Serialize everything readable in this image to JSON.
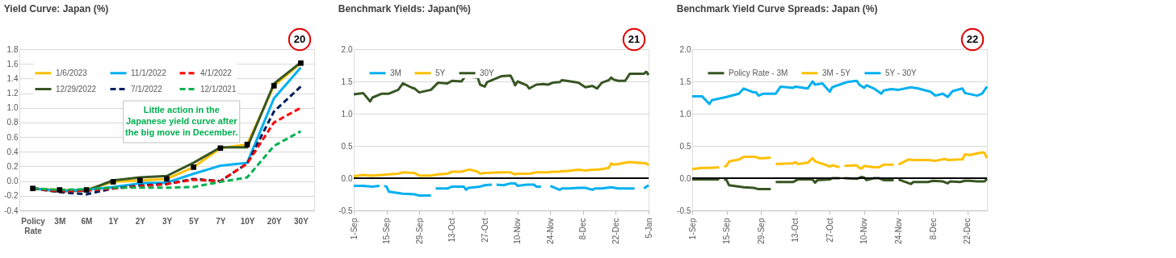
{
  "chart_data": [
    {
      "type": "line",
      "title": "Yield Curve: Japan (%)",
      "categories": [
        "Policy Rate",
        "3M",
        "6M",
        "1Y",
        "2Y",
        "3Y",
        "5Y",
        "7Y",
        "10Y",
        "20Y",
        "30Y"
      ],
      "series": [
        {
          "name": "1/6/2023",
          "color": "#ffc000",
          "marker": "square",
          "line_style": "solid",
          "values": [
            -0.1,
            -0.12,
            -0.12,
            -0.01,
            0.01,
            0.03,
            0.19,
            0.45,
            0.5,
            1.3,
            1.61
          ]
        },
        {
          "name": "12/29/2022",
          "color": "#375623",
          "line_style": "solid",
          "values": [
            -0.1,
            -0.14,
            -0.13,
            0.01,
            0.05,
            0.07,
            0.25,
            0.46,
            0.46,
            1.33,
            1.62
          ]
        },
        {
          "name": "11/1/2022",
          "color": "#00b0f0",
          "line_style": "solid",
          "values": [
            -0.1,
            -0.13,
            -0.12,
            -0.08,
            -0.03,
            -0.02,
            0.1,
            0.21,
            0.25,
            1.13,
            1.55
          ]
        },
        {
          "name": "7/1/2022",
          "color": "#002060",
          "line_style": "dashed",
          "values": [
            -0.1,
            -0.15,
            -0.18,
            -0.1,
            -0.06,
            -0.04,
            0.03,
            0.0,
            0.24,
            0.95,
            1.29
          ]
        },
        {
          "name": "4/1/2022",
          "color": "#ff0000",
          "line_style": "dashed",
          "values": [
            -0.1,
            -0.14,
            -0.13,
            -0.1,
            -0.07,
            -0.04,
            0.02,
            0.0,
            0.24,
            0.8,
            1.0
          ]
        },
        {
          "name": "12/1/2021",
          "color": "#00b050",
          "line_style": "dashed",
          "values": [
            -0.1,
            -0.12,
            -0.11,
            -0.09,
            -0.09,
            -0.09,
            -0.08,
            -0.01,
            0.05,
            0.48,
            0.68
          ]
        }
      ],
      "ylim": [
        -0.4,
        1.8
      ],
      "yticks": [
        -0.4,
        -0.2,
        {
          "value": 0,
          "label": "0.0"
        },
        0.2,
        0.4,
        0.6,
        0.8,
        {
          "value": 1,
          "label": "1.0"
        },
        1.2,
        1.4,
        1.6,
        1.8
      ],
      "grid": "y",
      "legend": "top left",
      "annotations": [
        "20",
        "Little action in the Japanese yield curve after the big move in December."
      ]
    },
    {
      "type": "line",
      "title": "Benchmark Yields: Japan(%)",
      "x": [
        "2022-09-01",
        "2022-09-05",
        "2022-09-08",
        "2022-09-09",
        "2022-09-13",
        "2022-09-16",
        "2022-09-20",
        "2022-09-22",
        "2022-09-26",
        "2022-09-27",
        "2022-09-29",
        "2022-10-04",
        "2022-10-07",
        "2022-10-11",
        "2022-10-13",
        "2022-10-17",
        "2022-10-20",
        "2022-10-21",
        "2022-10-24",
        "2022-10-25",
        "2022-10-27",
        "2022-10-28",
        "2022-11-03",
        "2022-11-07",
        "2022-11-08",
        "2022-11-09",
        "2022-11-10",
        "2022-11-14",
        "2022-11-15",
        "2022-11-18",
        "2022-11-21",
        "2022-11-23",
        "2022-11-25",
        "2022-11-28",
        "2022-11-29",
        "2022-12-01",
        "2022-12-06",
        "2022-12-09",
        "2022-12-12",
        "2022-12-14",
        "2022-12-16",
        "2022-12-19",
        "2022-12-20",
        "2022-12-21",
        "2022-12-23",
        "2022-12-26",
        "2022-12-28",
        "2023-01-03",
        "2023-01-04",
        "2023-01-05"
      ],
      "series": [
        {
          "name": "3M",
          "color": "#00b0f0",
          "x": [
            "2022-09-01",
            "2022-09-05",
            "2022-09-09",
            "2022-09-12",
            "2022-09-13",
            "2022-09-14",
            "2022-09-15",
            "2022-09-16",
            "2022-09-22",
            "2022-09-27",
            "2022-09-29",
            "2022-10-04",
            "2022-10-05",
            "2022-10-06",
            "2022-10-11",
            "2022-10-13",
            "2022-10-18",
            "2022-10-19",
            "2022-10-20",
            "2022-10-25",
            "2022-10-27",
            "2022-10-30",
            "2022-10-31",
            "2022-11-01",
            "2022-11-04",
            "2022-11-07",
            "2022-11-09",
            "2022-11-10",
            "2022-11-14",
            "2022-11-17",
            "2022-11-18",
            "2022-11-20",
            "2022-11-22",
            "2022-11-24",
            "2022-11-28",
            "2022-11-29",
            "2022-12-02",
            "2022-12-06",
            "2022-12-09",
            "2022-12-12",
            "2022-12-13",
            "2022-12-16",
            "2022-12-20",
            "2022-12-23",
            "2022-12-30",
            "2023-01-01",
            "2023-01-03",
            "2023-01-05"
          ],
          "values": [
            -0.12,
            -0.12,
            -0.13,
            -0.12,
            null,
            -0.12,
            -0.13,
            -0.21,
            -0.24,
            -0.25,
            -0.27,
            -0.27,
            null,
            -0.16,
            -0.16,
            -0.13,
            -0.13,
            -0.18,
            -0.15,
            -0.13,
            -0.11,
            -0.1,
            null,
            -0.1,
            -0.11,
            -0.08,
            -0.08,
            -0.12,
            -0.1,
            -0.1,
            -0.13,
            -0.13,
            null,
            -0.12,
            -0.18,
            -0.16,
            -0.16,
            -0.15,
            -0.15,
            -0.18,
            -0.16,
            -0.16,
            -0.14,
            -0.16,
            -0.16,
            null,
            -0.16,
            -0.11
          ]
        },
        {
          "name": "5Y",
          "color": "#ffc000",
          "values": [
            0.03,
            0.05,
            0.04,
            0.04,
            0.05,
            0.06,
            0.07,
            0.09,
            0.08,
            0.08,
            0.04,
            0.04,
            0.06,
            0.07,
            0.1,
            0.1,
            0.13,
            0.13,
            0.1,
            0.07,
            0.08,
            0.08,
            0.09,
            0.09,
            0.07,
            0.06,
            0.07,
            0.07,
            0.07,
            0.09,
            0.09,
            0.09,
            0.1,
            0.1,
            0.11,
            0.11,
            0.13,
            0.12,
            0.13,
            0.13,
            0.14,
            0.16,
            0.23,
            0.21,
            0.22,
            0.24,
            0.25,
            0.23,
            0.23,
            0.2
          ]
        },
        {
          "name": "30Y",
          "color": "#375623",
          "values": [
            1.3,
            1.32,
            1.19,
            1.25,
            1.31,
            1.31,
            1.37,
            1.47,
            1.4,
            1.39,
            1.33,
            1.37,
            1.48,
            1.47,
            1.51,
            1.5,
            1.64,
            1.57,
            1.56,
            1.45,
            1.42,
            1.49,
            1.58,
            1.59,
            1.52,
            1.44,
            1.5,
            1.44,
            1.39,
            1.45,
            1.46,
            1.45,
            1.48,
            1.49,
            1.52,
            1.51,
            1.48,
            1.41,
            1.43,
            1.39,
            1.48,
            1.52,
            1.56,
            1.53,
            1.51,
            1.51,
            1.62,
            1.62,
            1.65,
            1.6
          ]
        }
      ],
      "xlim": [
        "2022-09-01",
        "2023-01-05"
      ],
      "xticks": [
        {
          "value": "2022-09-01",
          "label": "1-Sep"
        },
        {
          "value": "2022-09-15",
          "label": "15-Sep"
        },
        {
          "value": "2022-09-29",
          "label": "29-Sep"
        },
        {
          "value": "2022-10-13",
          "label": "13-Oct"
        },
        {
          "value": "2022-10-27",
          "label": "27-Oct"
        },
        {
          "value": "2022-11-10",
          "label": "10-Nov"
        },
        {
          "value": "2022-11-24",
          "label": "24-Nov"
        },
        {
          "value": "2022-12-08",
          "label": "8-Dec"
        },
        {
          "value": "2022-12-22",
          "label": "22-Dec"
        },
        {
          "value": "2023-01-05",
          "label": "5-Jan"
        }
      ],
      "ylim": [
        -0.5,
        2.0
      ],
      "yticks": [
        -0.5,
        {
          "value": 0,
          "label": "0.0"
        },
        0.5,
        {
          "value": 1,
          "label": "1.0"
        },
        1.5,
        {
          "value": 2,
          "label": "2.0"
        }
      ],
      "ref_lines": [
        {
          "axis": "y",
          "value": 0,
          "color": "#000000"
        }
      ],
      "grid": "y",
      "legend": "top left",
      "annotations": [
        "21"
      ]
    },
    {
      "type": "line",
      "title": "Benchmark Yield Curve Spreads: Japan (%)",
      "series": [
        {
          "name": "Policy Rate - 3M",
          "color": "#375623",
          "x": [
            "2022-09-01",
            "2022-09-12",
            "2022-09-13",
            "2022-09-14",
            "2022-09-15",
            "2022-09-16",
            "2022-09-22",
            "2022-09-26",
            "2022-09-28",
            "2022-10-03",
            "2022-10-04",
            "2022-10-05",
            "2022-10-12",
            "2022-10-14",
            "2022-10-20",
            "2022-10-21",
            "2022-10-22",
            "2022-10-27",
            "2022-10-28",
            "2022-10-31",
            "2022-11-01",
            "2022-11-02",
            "2022-11-07",
            "2022-11-09",
            "2022-11-10",
            "2022-11-11",
            "2022-11-14",
            "2022-11-16",
            "2022-11-18",
            "2022-11-22",
            "2022-11-23",
            "2022-11-24",
            "2022-11-29",
            "2022-11-30",
            "2022-12-06",
            "2022-12-08",
            "2022-12-12",
            "2022-12-14",
            "2022-12-15",
            "2022-12-19",
            "2022-12-21",
            "2022-12-23",
            "2022-12-26",
            "2022-12-29",
            "2022-12-30"
          ],
          "values": [
            -0.02,
            -0.02,
            null,
            -0.02,
            -0.03,
            -0.11,
            -0.14,
            -0.15,
            -0.17,
            -0.17,
            null,
            -0.06,
            -0.06,
            -0.02,
            -0.02,
            -0.07,
            -0.03,
            -0.02,
            0.0,
            0.0,
            null,
            0.0,
            -0.01,
            0.02,
            0.01,
            -0.03,
            0.0,
            0.0,
            -0.03,
            -0.03,
            null,
            -0.02,
            -0.09,
            -0.06,
            -0.06,
            -0.04,
            -0.05,
            -0.08,
            -0.05,
            -0.06,
            -0.04,
            -0.04,
            -0.05,
            -0.05,
            -0.01
          ]
        },
        {
          "name": "3M - 5Y",
          "color": "#ffc000",
          "x": [
            "2022-09-01",
            "2022-09-05",
            "2022-09-08",
            "2022-09-12",
            "2022-09-13",
            "2022-09-14",
            "2022-09-15",
            "2022-09-16",
            "2022-09-20",
            "2022-09-22",
            "2022-09-27",
            "2022-09-28",
            "2022-09-30",
            "2022-10-03",
            "2022-10-04",
            "2022-10-05",
            "2022-10-12",
            "2022-10-13",
            "2022-10-14",
            "2022-10-18",
            "2022-10-20",
            "2022-10-21",
            "2022-10-25",
            "2022-10-27",
            "2022-10-28",
            "2022-10-31",
            "2022-11-01",
            "2022-11-02",
            "2022-11-07",
            "2022-11-08",
            "2022-11-09",
            "2022-11-10",
            "2022-11-14",
            "2022-11-16",
            "2022-11-18",
            "2022-11-22",
            "2022-11-23",
            "2022-11-24",
            "2022-11-28",
            "2022-11-30",
            "2022-12-06",
            "2022-12-09",
            "2022-12-13",
            "2022-12-14",
            "2022-12-19",
            "2022-12-20",
            "2022-12-21",
            "2022-12-23",
            "2022-12-28",
            "2022-12-29",
            "2022-12-30"
          ],
          "values": [
            0.14,
            0.16,
            0.16,
            0.17,
            null,
            0.18,
            0.19,
            0.26,
            0.29,
            0.33,
            0.33,
            0.31,
            0.31,
            0.32,
            null,
            0.22,
            0.23,
            0.25,
            0.22,
            0.24,
            0.31,
            0.26,
            0.21,
            0.18,
            0.2,
            0.17,
            null,
            0.19,
            0.2,
            0.16,
            0.15,
            0.19,
            0.17,
            0.17,
            0.21,
            0.21,
            null,
            0.21,
            0.29,
            0.28,
            0.28,
            0.27,
            0.3,
            0.28,
            0.29,
            0.29,
            0.37,
            0.36,
            0.4,
            0.39,
            0.31
          ]
        },
        {
          "name": "5Y - 30Y",
          "color": "#00b0f0",
          "x": [
            "2022-09-01",
            "2022-09-05",
            "2022-09-08",
            "2022-09-09",
            "2022-09-15",
            "2022-09-20",
            "2022-09-22",
            "2022-09-26",
            "2022-09-27",
            "2022-09-28",
            "2022-09-30",
            "2022-10-05",
            "2022-10-07",
            "2022-10-12",
            "2022-10-13",
            "2022-10-18",
            "2022-10-20",
            "2022-10-21",
            "2022-10-24",
            "2022-10-27",
            "2022-10-28",
            "2022-10-31",
            "2022-11-03",
            "2022-11-07",
            "2022-11-08",
            "2022-11-10",
            "2022-11-11",
            "2022-11-14",
            "2022-11-17",
            "2022-11-18",
            "2022-11-21",
            "2022-11-24",
            "2022-11-29",
            "2022-12-02",
            "2022-12-07",
            "2022-12-09",
            "2022-12-12",
            "2022-12-14",
            "2022-12-16",
            "2022-12-20",
            "2022-12-21",
            "2022-12-26",
            "2022-12-28",
            "2022-12-30"
          ],
          "values": [
            1.27,
            1.27,
            1.15,
            1.21,
            1.26,
            1.31,
            1.39,
            1.33,
            1.33,
            1.28,
            1.31,
            1.31,
            1.42,
            1.4,
            1.42,
            1.39,
            1.5,
            1.45,
            1.47,
            1.34,
            1.41,
            1.45,
            1.49,
            1.51,
            1.45,
            1.4,
            1.44,
            1.39,
            1.31,
            1.36,
            1.38,
            1.37,
            1.41,
            1.39,
            1.34,
            1.28,
            1.31,
            1.26,
            1.35,
            1.39,
            1.32,
            1.28,
            1.31,
            1.42
          ]
        }
      ],
      "xlim": [
        "2022-09-01",
        "2022-12-30"
      ],
      "xticks": [
        {
          "value": "2022-09-01",
          "label": "1-Sep"
        },
        {
          "value": "2022-09-15",
          "label": "15-Sep"
        },
        {
          "value": "2022-09-29",
          "label": "29-Sep"
        },
        {
          "value": "2022-10-13",
          "label": "13-Oct"
        },
        {
          "value": "2022-10-27",
          "label": "27-Oct"
        },
        {
          "value": "2022-11-10",
          "label": "10-Nov"
        },
        {
          "value": "2022-11-24",
          "label": "24-Nov"
        },
        {
          "value": "2022-12-08",
          "label": "8-Dec"
        },
        {
          "value": "2022-12-22",
          "label": "22-Dec"
        }
      ],
      "ylim": [
        -0.5,
        2.0
      ],
      "yticks": [
        -0.5,
        {
          "value": 0,
          "label": "0.0"
        },
        0.5,
        {
          "value": 1,
          "label": "1.0"
        },
        1.5,
        {
          "value": 2,
          "label": "2.0"
        }
      ],
      "ref_lines": [
        {
          "axis": "y",
          "value": 0,
          "color": "#000000"
        }
      ],
      "grid": "y",
      "legend": "top left",
      "annotations": [
        "22"
      ]
    }
  ]
}
